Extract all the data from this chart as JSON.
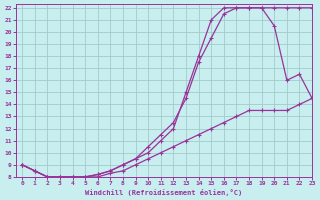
{
  "xlabel": "Windchill (Refroidissement éolien,°C)",
  "xlim": [
    -0.5,
    23
  ],
  "ylim": [
    8,
    22.3
  ],
  "yticks": [
    8,
    9,
    10,
    11,
    12,
    13,
    14,
    15,
    16,
    17,
    18,
    19,
    20,
    21,
    22
  ],
  "xticks": [
    0,
    1,
    2,
    3,
    4,
    5,
    6,
    7,
    8,
    9,
    10,
    11,
    12,
    13,
    14,
    15,
    16,
    17,
    18,
    19,
    20,
    21,
    22,
    23
  ],
  "bg_color": "#c8eef0",
  "line_color": "#993399",
  "grid_color": "#a0ccc8",
  "line1_x": [
    0,
    1,
    2,
    3,
    4,
    5,
    6,
    7,
    8,
    9,
    10,
    11,
    12,
    13,
    14,
    15,
    16,
    17,
    18,
    19,
    20,
    21,
    22,
    23
  ],
  "line1_y": [
    9.0,
    8.5,
    8.0,
    8.0,
    8.0,
    8.0,
    8.0,
    8.3,
    8.5,
    9.0,
    9.5,
    10.0,
    10.5,
    11.0,
    11.5,
    12.0,
    12.5,
    13.0,
    13.5,
    13.5,
    13.5,
    13.5,
    14.0,
    14.5
  ],
  "line2_x": [
    0,
    1,
    2,
    3,
    4,
    5,
    6,
    7,
    8,
    9,
    10,
    11,
    12,
    13,
    14,
    15,
    16,
    17,
    18,
    19,
    20,
    21,
    22,
    23
  ],
  "line2_y": [
    9.0,
    8.5,
    8.0,
    8.0,
    8.0,
    8.0,
    8.2,
    8.5,
    9.0,
    9.5,
    10.5,
    11.5,
    12.5,
    14.5,
    17.5,
    19.5,
    21.5,
    22.0,
    22.0,
    22.0,
    22.0,
    22.0,
    22.0,
    22.0
  ],
  "line3_x": [
    0,
    1,
    2,
    3,
    4,
    5,
    6,
    7,
    8,
    9,
    10,
    11,
    12,
    13,
    14,
    15,
    16,
    17,
    18,
    19,
    20,
    21,
    22,
    23
  ],
  "line3_y": [
    9.0,
    8.5,
    8.0,
    8.0,
    8.0,
    8.0,
    8.2,
    8.5,
    9.0,
    9.5,
    10.0,
    11.0,
    12.0,
    15.0,
    18.0,
    21.0,
    22.0,
    22.0,
    22.0,
    22.0,
    20.5,
    16.0,
    16.5,
    14.5
  ]
}
